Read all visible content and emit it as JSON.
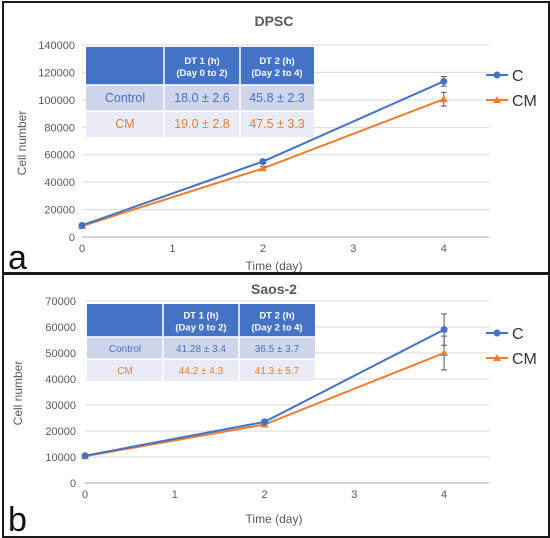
{
  "colors": {
    "C": "#4472c4",
    "CM": "#ed7d31",
    "table_header": "#4472c4",
    "row_control": "#cfd5ea",
    "row_cm": "#e9ebf5",
    "grid": "#d9d9d9"
  },
  "chart_data": [
    {
      "type": "line",
      "panel_label": "a",
      "title": "DPSC",
      "xlabel": "Time (day)",
      "ylabel": "Cell number",
      "xlim": [
        0,
        4.5
      ],
      "ylim": [
        0,
        140000
      ],
      "x_ticks": [
        "0",
        "1",
        "2",
        "3",
        "4"
      ],
      "y_ticks": [
        "0",
        "20000",
        "40000",
        "60000",
        "80000",
        "100000",
        "120000",
        "140000"
      ],
      "grid": "horizontal",
      "legend_position": "right",
      "series": [
        {
          "name": "C",
          "marker": "circle",
          "x": [
            0,
            2,
            4
          ],
          "y": [
            8500,
            55000,
            113500
          ],
          "error": [
            500,
            1500,
            3500
          ]
        },
        {
          "name": "CM",
          "marker": "triangle",
          "x": [
            0,
            2,
            4
          ],
          "y": [
            8000,
            50000,
            100500
          ],
          "error": [
            500,
            1500,
            5000
          ]
        }
      ],
      "table": {
        "headers": [
          "",
          "DT 1 (h)",
          "(Day 0 to 2)",
          "DT 2 (h)",
          "(Day 2 to 4)"
        ],
        "rows": [
          {
            "label": "Control",
            "dt1": "18.0 ± 2.6",
            "dt2": "45.8 ± 2.3",
            "color": "#4472c4"
          },
          {
            "label": "CM",
            "dt1": "19.0 ± 2.8",
            "dt2": "47.5 ± 3.3",
            "color": "#ed7d31"
          }
        ]
      }
    },
    {
      "type": "line",
      "panel_label": "b",
      "title": "Saos-2",
      "xlabel": "Time (day)",
      "ylabel": "Cell number",
      "xlim": [
        0,
        4.5
      ],
      "ylim": [
        0,
        70000
      ],
      "x_ticks": [
        "0",
        "1",
        "2",
        "3",
        "4"
      ],
      "y_ticks": [
        "0",
        "10000",
        "20000",
        "30000",
        "40000",
        "50000",
        "60000",
        "70000"
      ],
      "grid": "horizontal",
      "legend_position": "right",
      "series": [
        {
          "name": "C",
          "marker": "circle",
          "x": [
            0,
            2,
            4
          ],
          "y": [
            10500,
            23500,
            59000
          ],
          "error": [
            500,
            800,
            6000
          ]
        },
        {
          "name": "CM",
          "marker": "triangle",
          "x": [
            0,
            2,
            4
          ],
          "y": [
            10300,
            22500,
            50000
          ],
          "error": [
            500,
            800,
            6500
          ]
        }
      ],
      "table": {
        "headers": [
          "",
          "DT 1 (h)",
          "(Day 0 to 2)",
          "DT 2 (h)",
          "(Day 2 to 4)"
        ],
        "rows": [
          {
            "label": "Control",
            "dt1": "41.28 ± 3.4",
            "dt2": "36.5 ± 3.7",
            "color": "#4472c4"
          },
          {
            "label": "CM",
            "dt1": "44.2 ± 4.3",
            "dt2": "41.3 ± 5.7",
            "color": "#ed7d31"
          }
        ]
      }
    }
  ]
}
